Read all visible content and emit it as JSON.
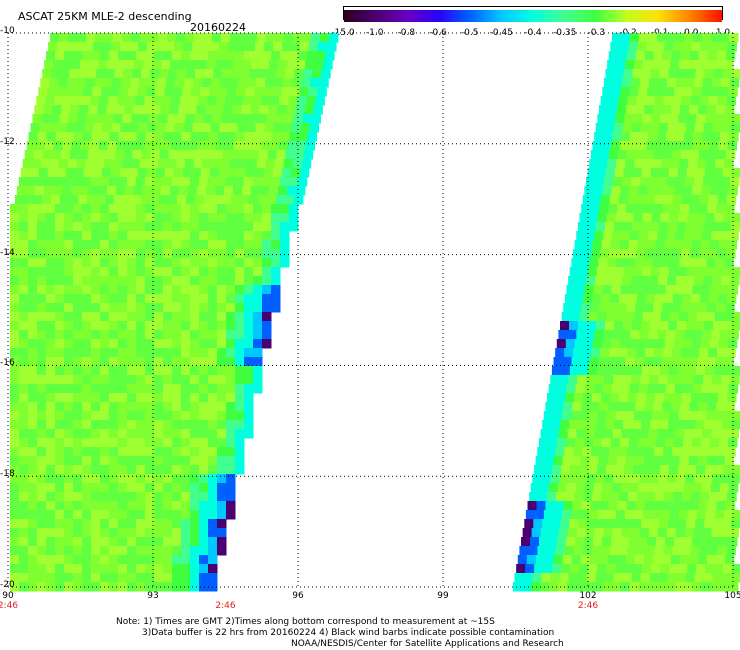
{
  "header": {
    "title": "ASCAT 25KM MLE-2 descending",
    "date": "20160224"
  },
  "colorbar": {
    "labels": [
      "-15.0",
      "-1.0",
      "-0.8",
      "-0.6",
      "-0.5",
      "-0.45",
      "-0.4",
      "-0.35",
      "-0.3",
      "-0.2",
      "-0.1",
      "0.0",
      "1.0"
    ],
    "colors": [
      "#2a0020",
      "#4a0070",
      "#6a00c0",
      "#2a00ff",
      "#0060ff",
      "#00c8ff",
      "#00ffe0",
      "#40ff90",
      "#40ff40",
      "#c0ff20",
      "#ffe000",
      "#ff8000",
      "#ff1000"
    ]
  },
  "axes": {
    "lat_labels": [
      "-10",
      "-12",
      "-14",
      "-16",
      "-18",
      "-20"
    ],
    "lon_labels": [
      "90",
      "93",
      "96",
      "99",
      "102",
      "105"
    ],
    "time_labels": [
      "2:46",
      "2:46",
      "2:46"
    ]
  },
  "footer": {
    "note1": "Note: 1) Times are GMT 2)Times along bottom correspond to measurement at ~15S",
    "note2": "3)Data buffer is 22 hrs from 20160224 4) Black wind barbs indicate possible contamination",
    "note3": "NOAA/NESDIS/Center for Satellite Applications and Research"
  },
  "colors": {
    "background_field": "#9fff30",
    "swath_green": "#40ff40",
    "edge_cyan": "#00ffe0",
    "edge_blue": "#0060ff",
    "edge_purple": "#4a0070",
    "time_label": "#dd2222"
  }
}
